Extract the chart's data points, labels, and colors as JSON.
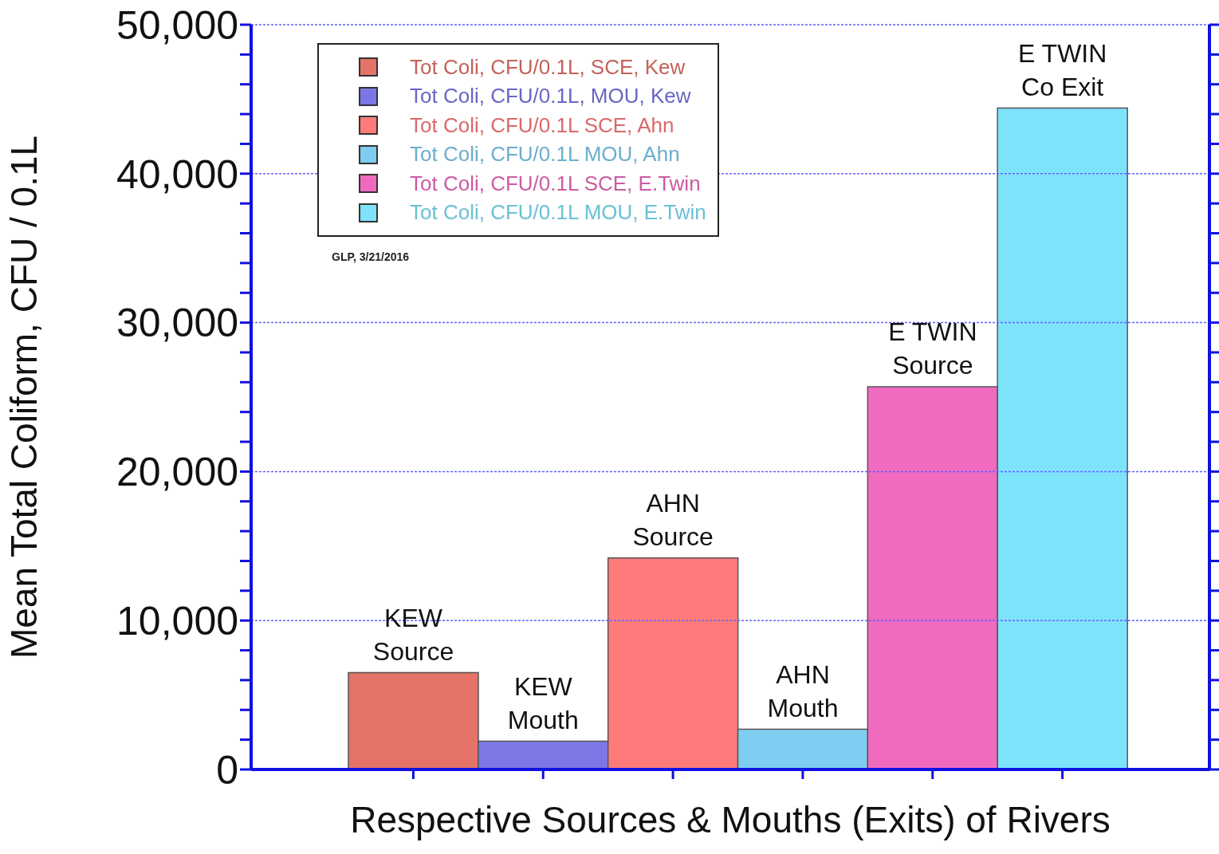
{
  "chart_data": {
    "type": "bar",
    "stacked": true,
    "xlabel": "Respective Sources & Mouths (Exits) of Rivers",
    "ylabel": "Mean Total Coliform, CFU / 0.1L",
    "categories": [
      "KEW Source",
      "KEW Mouth",
      "AHN Source",
      "AHN Mouth",
      "E TWIN Source",
      "E TWIN Co Exit"
    ],
    "series": [
      {
        "name": "Tot Coli, CFU/0.1L, SCE, Kew",
        "color": "#e57368",
        "values": [
          6500,
          null,
          null,
          null,
          null,
          null
        ]
      },
      {
        "name": "Tot Coli, CFU/0.1L, MOU, Kew",
        "color": "#7b78e6",
        "values": [
          null,
          1900,
          null,
          null,
          null,
          null
        ]
      },
      {
        "name": "Tot Coli, CFU/0.1L SCE, Ahn",
        "color": "#ff7b7b",
        "values": [
          null,
          null,
          14200,
          null,
          null,
          null
        ]
      },
      {
        "name": "Tot Coli, CFU/0.1L MOU, Ahn",
        "color": "#7fcdf0",
        "values": [
          null,
          null,
          null,
          2700,
          null,
          null
        ]
      },
      {
        "name": "Tot Coli, CFU/0.1L SCE, E.Twin",
        "color": "#f06bc0",
        "values": [
          null,
          null,
          null,
          null,
          25700,
          null
        ]
      },
      {
        "name": "Tot Coli, CFU/0.1L MOU, E.Twin",
        "color": "#7de3fb",
        "values": [
          null,
          null,
          null,
          null,
          null,
          44400
        ]
      }
    ],
    "ylim": [
      0,
      50000
    ],
    "yticks": [
      {
        "value": 0,
        "label": "0"
      },
      {
        "value": 2000,
        "label": null
      },
      {
        "value": 4000,
        "label": null
      },
      {
        "value": 6000,
        "label": null
      },
      {
        "value": 8000,
        "label": null
      },
      {
        "value": 10000,
        "label": "10,000"
      },
      {
        "value": 12000,
        "label": null
      },
      {
        "value": 14000,
        "label": null
      },
      {
        "value": 16000,
        "label": null
      },
      {
        "value": 18000,
        "label": null
      },
      {
        "value": 20000,
        "label": "20,000"
      },
      {
        "value": 22000,
        "label": null
      },
      {
        "value": 24000,
        "label": null
      },
      {
        "value": 26000,
        "label": null
      },
      {
        "value": 28000,
        "label": null
      },
      {
        "value": 30000,
        "label": "30,000"
      },
      {
        "value": 32000,
        "label": null
      },
      {
        "value": 34000,
        "label": null
      },
      {
        "value": 36000,
        "label": null
      },
      {
        "value": 38000,
        "label": null
      },
      {
        "value": 40000,
        "label": "40,000"
      },
      {
        "value": 42000,
        "label": null
      },
      {
        "value": 44000,
        "label": null
      },
      {
        "value": 46000,
        "label": null
      },
      {
        "value": 48000,
        "label": null
      },
      {
        "value": 50000,
        "label": "50,000"
      }
    ],
    "grid": "y",
    "legend": "top left",
    "annotations": [
      "GLP, 3/21/2016"
    ]
  }
}
